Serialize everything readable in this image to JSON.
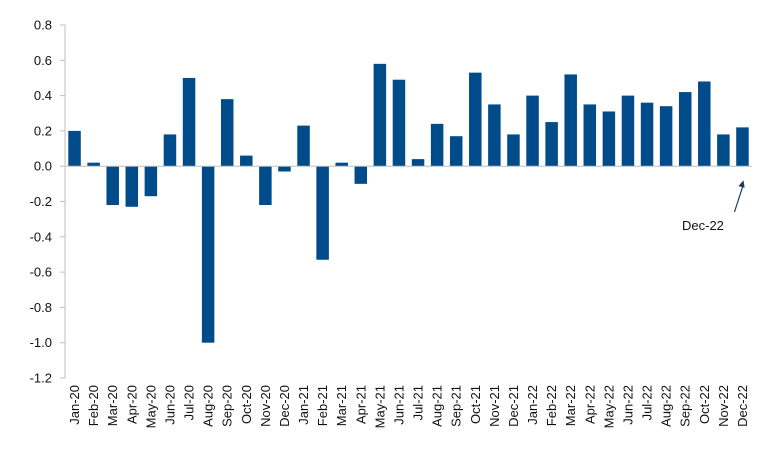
{
  "chart_data": {
    "type": "bar",
    "categories": [
      "Jan-20",
      "Feb-20",
      "Mar-20",
      "Apr-20",
      "May-20",
      "Jun-20",
      "Jul-20",
      "Aug-20",
      "Sep-20",
      "Oct-20",
      "Nov-20",
      "Dec-20",
      "Jan-21",
      "Feb-21",
      "Mar-21",
      "Apr-21",
      "May-21",
      "Jun-21",
      "Jul-21",
      "Aug-21",
      "Sep-21",
      "Oct-21",
      "Nov-21",
      "Dec-21",
      "Jan-22",
      "Feb-22",
      "Mar-22",
      "Apr-22",
      "May-22",
      "Jun-22",
      "Jul-22",
      "Aug-22",
      "Sep-22",
      "Oct-22",
      "Nov-22",
      "Dec-22"
    ],
    "values": [
      0.2,
      0.02,
      -0.22,
      -0.23,
      -0.17,
      0.18,
      0.5,
      -1.0,
      0.38,
      0.06,
      -0.22,
      -0.03,
      0.23,
      -0.53,
      0.02,
      -0.1,
      0.58,
      0.49,
      0.04,
      0.24,
      0.17,
      0.53,
      0.35,
      0.18,
      0.4,
      0.25,
      0.52,
      0.35,
      0.31,
      0.4,
      0.36,
      0.34,
      0.42,
      0.48,
      0.18,
      0.22
    ],
    "yticks": [
      "0.8",
      "0.6",
      "0.4",
      "0.2",
      "0.0",
      "-0.2",
      "-0.4",
      "-0.6",
      "-0.8",
      "-1.0",
      "-1.2"
    ],
    "ylim": [
      -1.2,
      0.8
    ],
    "grid": false,
    "legend": "none",
    "bar_color": "#004C8A",
    "axis_color": "#bfbfbf",
    "annotation": {
      "text": "Dec-22",
      "category": "Dec-22"
    }
  }
}
